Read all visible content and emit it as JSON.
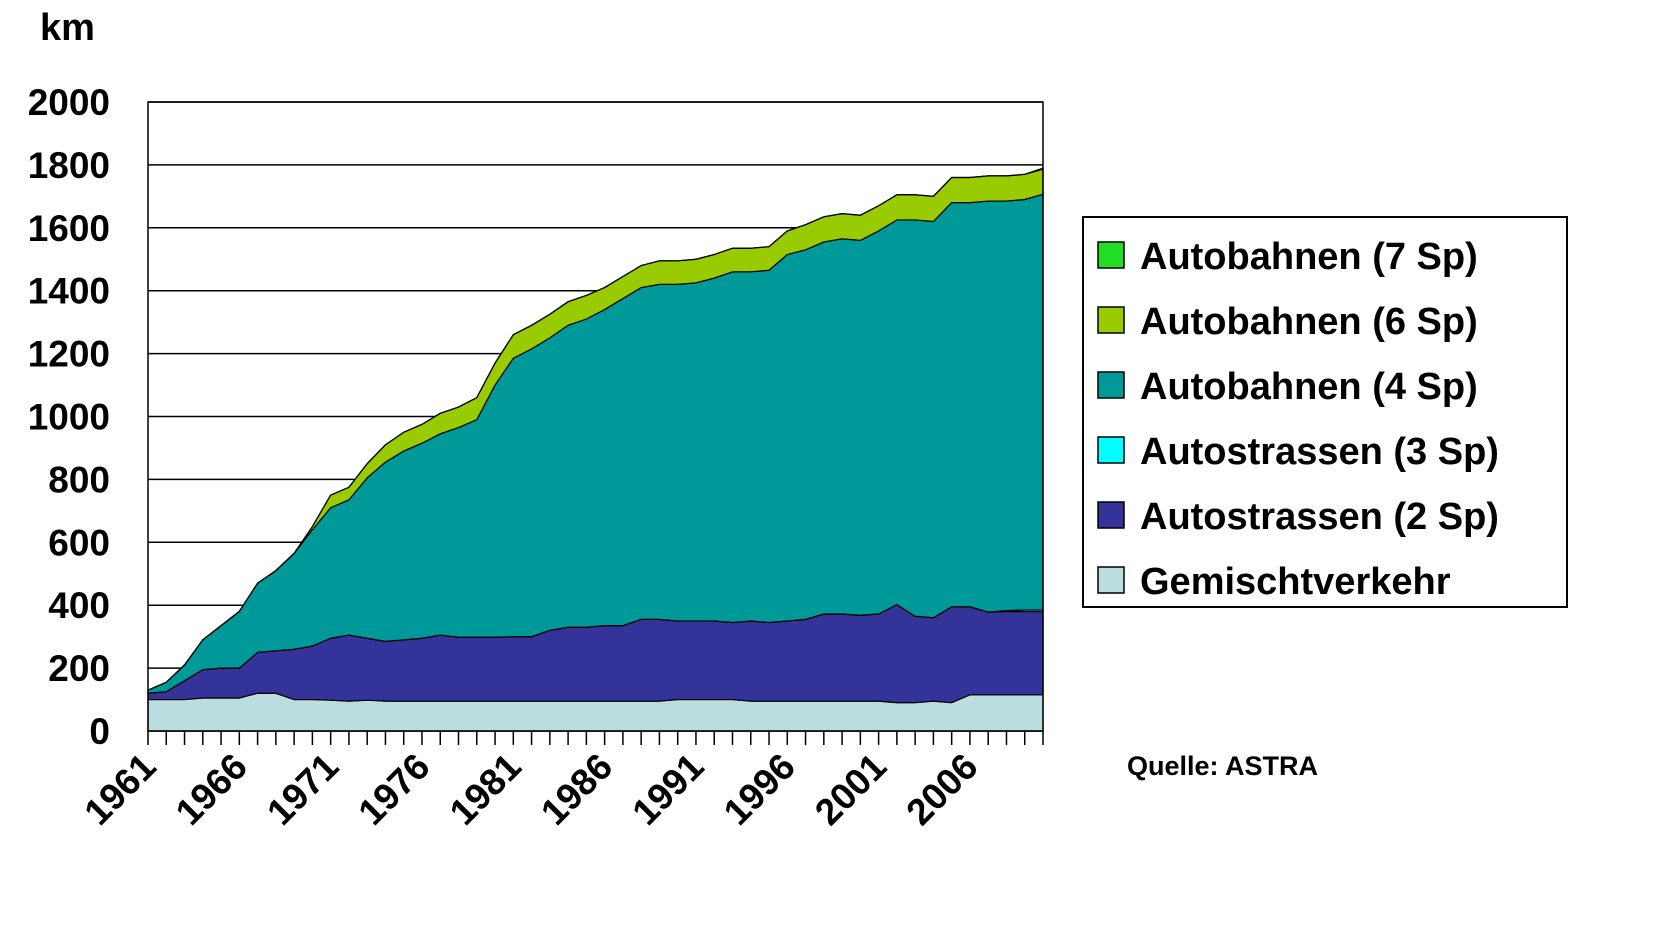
{
  "chart_data": {
    "type": "stacked_area",
    "y_label": "km",
    "source": "Quelle: ASTRA",
    "x": [
      1961,
      1962,
      1963,
      1964,
      1965,
      1966,
      1967,
      1968,
      1969,
      1970,
      1971,
      1972,
      1973,
      1974,
      1975,
      1976,
      1977,
      1978,
      1979,
      1980,
      1981,
      1982,
      1983,
      1984,
      1985,
      1986,
      1987,
      1988,
      1989,
      1990,
      1991,
      1992,
      1993,
      1994,
      1995,
      1996,
      1997,
      1998,
      1999,
      2000,
      2001,
      2002,
      2003,
      2004,
      2005,
      2006,
      2007,
      2008,
      2009,
      2010
    ],
    "xlim": [
      1961,
      2010
    ],
    "xticks": [
      1961,
      1966,
      1971,
      1976,
      1981,
      1986,
      1991,
      1996,
      2001,
      2006
    ],
    "ylim": [
      0,
      2000
    ],
    "yticks": [
      0,
      200,
      400,
      600,
      800,
      1000,
      1200,
      1400,
      1600,
      1800,
      2000
    ],
    "grid": true,
    "legend": "right",
    "series": [
      {
        "name": "Autobahnen (7 Sp)",
        "color": "#22dd22",
        "values": [
          0,
          0,
          0,
          0,
          0,
          0,
          0,
          0,
          0,
          0,
          0,
          0,
          0,
          0,
          0,
          0,
          0,
          0,
          0,
          0,
          0,
          0,
          0,
          0,
          0,
          0,
          0,
          0,
          0,
          0,
          0,
          0,
          0,
          0,
          0,
          0,
          0,
          0,
          0,
          0,
          0,
          0,
          0,
          0,
          0,
          0,
          0,
          0,
          0,
          3
        ]
      },
      {
        "name": "Autobahnen (6 Sp)",
        "color": "#99cc00",
        "values": [
          0,
          0,
          0,
          0,
          0,
          0,
          0,
          0,
          0,
          10,
          40,
          40,
          45,
          55,
          60,
          60,
          65,
          65,
          70,
          70,
          75,
          75,
          75,
          75,
          75,
          70,
          70,
          70,
          75,
          75,
          75,
          75,
          75,
          75,
          75,
          75,
          80,
          80,
          80,
          80,
          80,
          80,
          80,
          80,
          80,
          80,
          80,
          80,
          80,
          80
        ]
      },
      {
        "name": "Autobahnen (4 Sp)",
        "color": "#009999",
        "values": [
          10,
          30,
          50,
          95,
          135,
          180,
          220,
          255,
          305,
          370,
          415,
          430,
          510,
          570,
          600,
          620,
          640,
          667,
          692,
          802,
          885,
          915,
          930,
          960,
          980,
          1005,
          1040,
          1055,
          1065,
          1070,
          1075,
          1090,
          1115,
          1110,
          1120,
          1165,
          1175,
          1183,
          1193,
          1192,
          1218,
          1223,
          1260,
          1260,
          1285,
          1285,
          1307,
          1302,
          1305,
          1322
        ]
      },
      {
        "name": "Autostrassen (3 Sp)",
        "color": "#00ffff",
        "values": [
          0,
          0,
          0,
          0,
          0,
          0,
          0,
          0,
          0,
          0,
          0,
          0,
          0,
          0,
          0,
          0,
          0,
          0,
          0,
          0,
          0,
          0,
          0,
          0,
          0,
          0,
          0,
          0,
          0,
          0,
          0,
          0,
          0,
          0,
          0,
          0,
          0,
          0,
          0,
          0,
          0,
          0,
          0,
          0,
          0,
          0,
          0,
          3,
          5,
          5
        ]
      },
      {
        "name": "Autostrassen (2 Sp)",
        "color": "#333399",
        "values": [
          20,
          25,
          60,
          90,
          95,
          95,
          130,
          135,
          160,
          170,
          197,
          210,
          197,
          190,
          195,
          200,
          210,
          203,
          203,
          203,
          205,
          205,
          225,
          235,
          235,
          240,
          240,
          260,
          260,
          250,
          250,
          250,
          245,
          255,
          250,
          255,
          260,
          277,
          277,
          273,
          277,
          312,
          275,
          265,
          305,
          280,
          263,
          265,
          265,
          265
        ]
      },
      {
        "name": "Gemischtverkehr",
        "color": "#bbdde0",
        "values": [
          100,
          100,
          100,
          105,
          105,
          105,
          120,
          120,
          100,
          100,
          98,
          95,
          98,
          95,
          95,
          95,
          95,
          95,
          95,
          95,
          95,
          95,
          95,
          95,
          95,
          95,
          95,
          95,
          95,
          100,
          100,
          100,
          100,
          95,
          95,
          95,
          95,
          95,
          95,
          95,
          95,
          90,
          90,
          95,
          90,
          115,
          115,
          115,
          115,
          115
        ]
      }
    ]
  }
}
